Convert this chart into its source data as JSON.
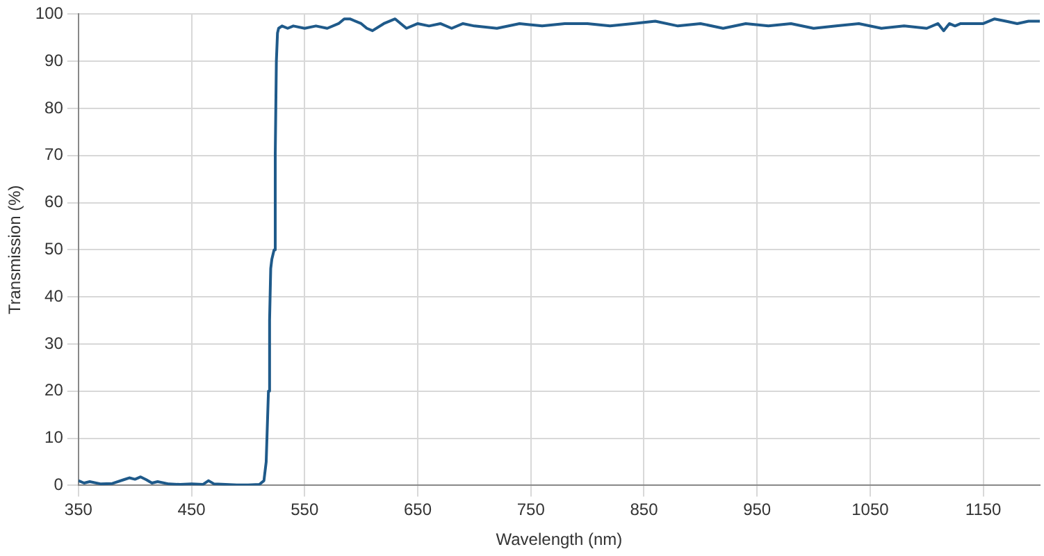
{
  "chart_data": {
    "type": "line",
    "xlabel": "Wavelength (nm)",
    "ylabel": "Transmission (%)",
    "xlim": [
      350,
      1200
    ],
    "xticks": [
      350,
      450,
      550,
      650,
      750,
      850,
      950,
      1050,
      1150
    ],
    "ylim": [
      0,
      100
    ],
    "yticks": [
      0,
      10,
      20,
      30,
      40,
      50,
      60,
      70,
      80,
      90,
      100
    ],
    "grid": true,
    "marker": "none",
    "line_style": "solid",
    "series": [
      {
        "color": "#1f5a8a",
        "x": [
          350,
          355,
          360,
          370,
          380,
          390,
          395,
          400,
          405,
          410,
          415,
          420,
          430,
          440,
          450,
          460,
          465,
          470,
          480,
          490,
          500,
          510,
          514,
          516,
          518,
          519,
          520,
          521,
          522,
          523,
          524,
          525,
          526,
          527,
          530,
          535,
          540,
          550,
          560,
          570,
          580,
          585,
          590,
          600,
          605,
          610,
          620,
          630,
          640,
          650,
          660,
          670,
          680,
          690,
          700,
          720,
          740,
          760,
          780,
          800,
          820,
          840,
          860,
          880,
          900,
          920,
          940,
          960,
          980,
          1000,
          1020,
          1040,
          1060,
          1080,
          1100,
          1110,
          1115,
          1120,
          1125,
          1130,
          1140,
          1150,
          1160,
          1170,
          1180,
          1190,
          1200
        ],
        "values": [
          1,
          0.5,
          0.8,
          0.3,
          0.4,
          1.2,
          1.6,
          1.3,
          1.8,
          1.2,
          0.5,
          0.8,
          0.3,
          0.2,
          0.3,
          0.2,
          1,
          0.3,
          0.2,
          0.1,
          0.1,
          0.2,
          1,
          5,
          20,
          35,
          46,
          48,
          49,
          50,
          70,
          90,
          96,
          97,
          97.5,
          97,
          97.5,
          97,
          97.5,
          97,
          98,
          99,
          99,
          98,
          97,
          96.5,
          98,
          99,
          97,
          98,
          97.5,
          98,
          97,
          98,
          97.5,
          97,
          98,
          97.5,
          98,
          98,
          97.5,
          98,
          98.5,
          97.5,
          98,
          97,
          98,
          97.5,
          98,
          97,
          97.5,
          98,
          97,
          97.5,
          97,
          98,
          96.5,
          98,
          97.5,
          98,
          98,
          98,
          99,
          98.5,
          98,
          98.5,
          98.5
        ]
      }
    ]
  }
}
